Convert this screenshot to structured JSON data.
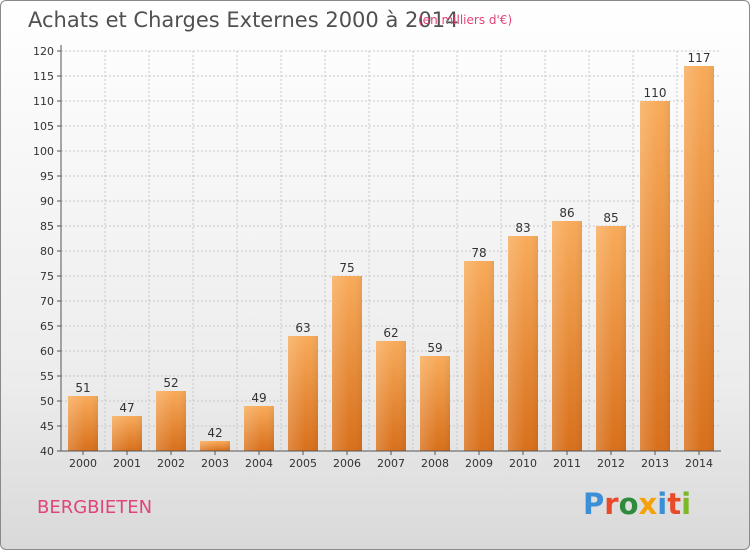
{
  "title": "Achats et Charges Externes 2000 à 2014",
  "subtitle": "(en milliers d'€)",
  "commune": "BERGBIETEN",
  "logo": {
    "text": "Proxiti",
    "letter_colors": [
      "#3a8fd6",
      "#e94b2a",
      "#2e8b3a",
      "#f5a20a",
      "#3a8fd6",
      "#e94b2a",
      "#7ab825"
    ]
  },
  "colors": {
    "bar_light": "#f8ab5a",
    "bar_dark": "#d86f1a",
    "grid": "#c8c8c8",
    "axis": "#555555",
    "accent": "#e0457a"
  },
  "chart_data": {
    "type": "bar",
    "title": "Achats et Charges Externes 2000 à 2014",
    "subtitle": "(en milliers d'€)",
    "categories": [
      "2000",
      "2001",
      "2002",
      "2003",
      "2004",
      "2005",
      "2006",
      "2007",
      "2008",
      "2009",
      "2010",
      "2011",
      "2012",
      "2013",
      "2014"
    ],
    "values": [
      51,
      47,
      52,
      42,
      49,
      63,
      75,
      62,
      59,
      78,
      83,
      86,
      85,
      110,
      117
    ],
    "ylim": [
      40,
      120
    ],
    "yticks": [
      40,
      45,
      50,
      55,
      60,
      65,
      70,
      75,
      80,
      85,
      90,
      95,
      100,
      105,
      110,
      115,
      120
    ],
    "grid": true
  }
}
